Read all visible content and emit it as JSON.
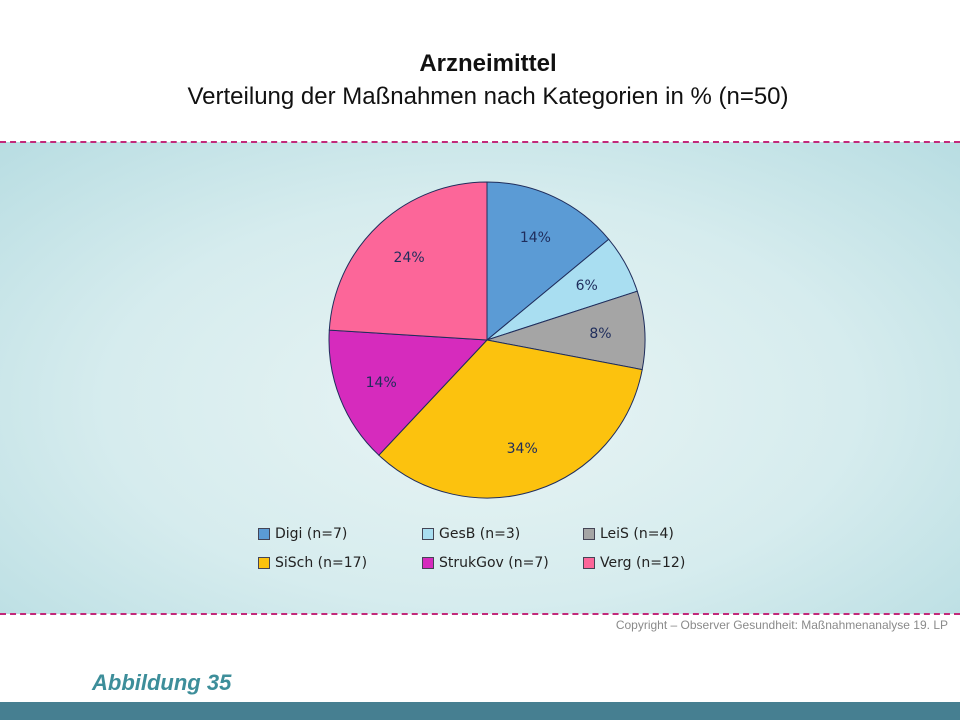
{
  "title": "Arzneimittel",
  "subtitle": "Verteilung der Maßnahmen nach Kategorien in % (n=50)",
  "copyright": "Copyright – Observer Gesundheit: Maßnahmenanalyse 19. LP",
  "figure_label": "Abbildung 35",
  "colors": {
    "accent_dash": "#c2297a",
    "footer_bar": "#467f91",
    "figure_label": "#3d8e9a"
  },
  "chart_data": {
    "type": "pie",
    "title": "Arzneimittel",
    "subtitle": "Verteilung der Maßnahmen nach Kategorien in % (n=50)",
    "legend_position": "bottom",
    "slices": [
      {
        "name": "Digi (n=7)",
        "value": 14,
        "label": "14%",
        "color": "#5b9bd5"
      },
      {
        "name": "GesB (n=3)",
        "value": 6,
        "label": "6%",
        "color": "#a9def1"
      },
      {
        "name": "LeiS (n=4)",
        "value": 8,
        "label": "8%",
        "color": "#a5a5a5"
      },
      {
        "name": "SiSch (n=17)",
        "value": 34,
        "label": "34%",
        "color": "#fcc20e"
      },
      {
        "name": "StrukGov (n=7)",
        "value": 14,
        "label": "14%",
        "color": "#d62bbd"
      },
      {
        "name": "Verg (n=12)",
        "value": 24,
        "label": "24%",
        "color": "#fc6699"
      }
    ]
  }
}
